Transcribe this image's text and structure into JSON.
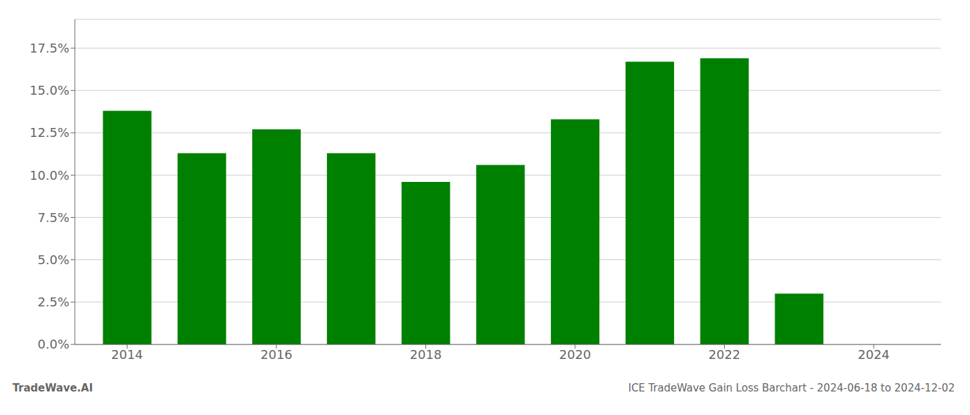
{
  "chart_data": {
    "type": "bar",
    "x": [
      2014,
      2015,
      2016,
      2017,
      2018,
      2019,
      2020,
      2021,
      2022,
      2023,
      2024
    ],
    "values": [
      0.138,
      0.113,
      0.127,
      0.113,
      0.096,
      0.106,
      0.133,
      0.167,
      0.169,
      0.03,
      0.0
    ],
    "color": "#008000",
    "xlim": [
      2013.3,
      2024.9
    ],
    "xticks": [
      2014,
      2016,
      2018,
      2020,
      2022,
      2024
    ],
    "ylim": [
      0,
      0.192
    ],
    "yticks": [
      {
        "value": 0.0,
        "label": "0.0%"
      },
      {
        "value": 0.025,
        "label": "2.5%"
      },
      {
        "value": 0.05,
        "label": "5.0%"
      },
      {
        "value": 0.075,
        "label": "7.5%"
      },
      {
        "value": 0.1,
        "label": "10.0%"
      },
      {
        "value": 0.125,
        "label": "12.5%"
      },
      {
        "value": 0.15,
        "label": "15.0%"
      },
      {
        "value": 0.175,
        "label": "17.5%"
      }
    ],
    "grid": true,
    "annotations": [
      "TradeWave.AI",
      "ICE TradeWave Gain Loss Barchart - 2024-06-18 to 2024-12-02"
    ]
  }
}
